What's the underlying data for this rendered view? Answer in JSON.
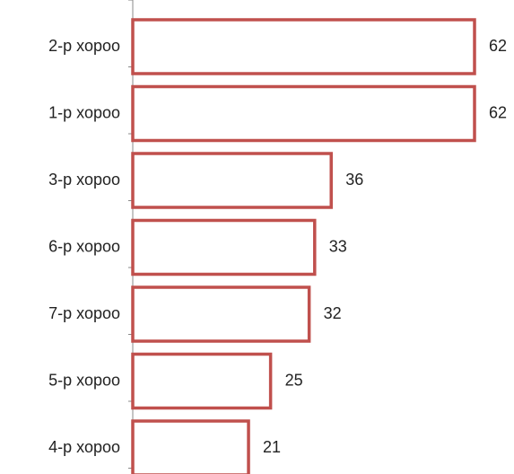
{
  "caption_fragment": "",
  "chart_data": {
    "type": "bar",
    "orientation": "horizontal",
    "title": "",
    "xlabel": "",
    "ylabel": "",
    "categories": [
      "2-р хороо",
      "1-р хороо",
      "3-р хороо",
      "6-р хороо",
      "7-р хороо",
      "5-р хороо",
      "4-р хороо"
    ],
    "values": [
      62,
      62,
      36,
      33,
      32,
      25,
      21
    ],
    "xlim": [
      0,
      62
    ],
    "grid": false,
    "legend": "none",
    "colors": {
      "bar_stroke": "#c0504d",
      "bar_fill": "#ffffff"
    }
  }
}
